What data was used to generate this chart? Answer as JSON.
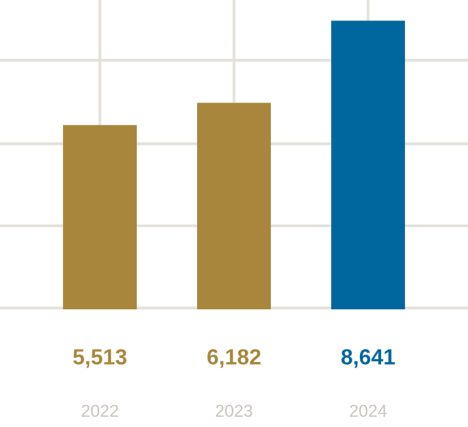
{
  "chart_data": {
    "type": "bar",
    "categories": [
      "2022",
      "2023",
      "2024"
    ],
    "values": [
      5513,
      6182,
      8641
    ],
    "value_labels": [
      "5,513",
      "6,182",
      "8,641"
    ],
    "colors": [
      "#a8863c",
      "#a8863c",
      "#00679e"
    ],
    "tick_labels": "x",
    "grid": true
  }
}
